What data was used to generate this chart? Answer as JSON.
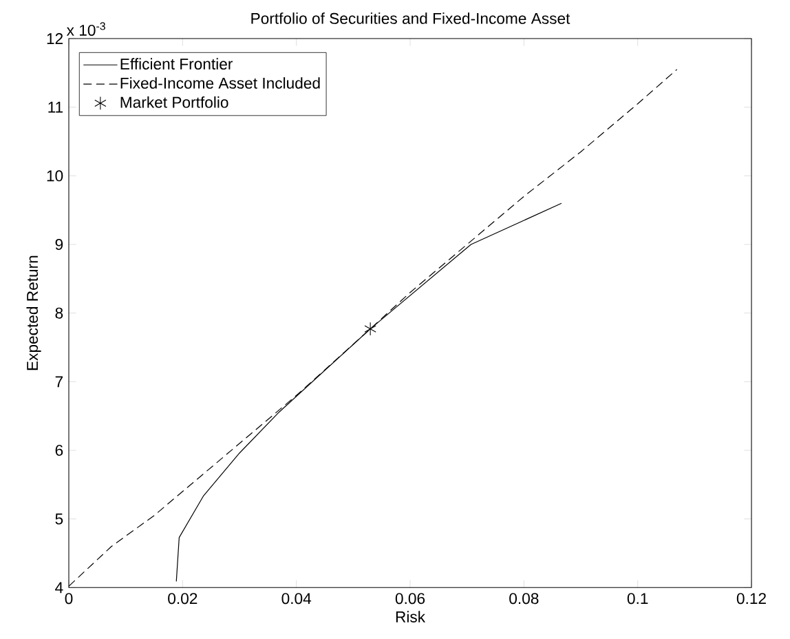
{
  "chart_data": {
    "type": "line",
    "title": "Portfolio of Securities and Fixed-Income Asset",
    "xlabel": "Risk",
    "ylabel": "Expected Return",
    "annotations": [
      "x 10$^{-3}$"
    ],
    "xlim": [
      0,
      0.12
    ],
    "xticks": [
      0,
      0.02,
      0.04,
      0.06,
      0.08,
      0.1,
      0.12
    ],
    "ylim": [
      4,
      12
    ],
    "yticks": [
      4,
      5,
      6,
      7,
      8,
      9,
      10,
      11,
      12
    ],
    "legend": "top left",
    "series": [
      {
        "name": "Efficient Frontier",
        "type": "line",
        "color": "#000000",
        "line_style": "solid",
        "marker": "none",
        "x": [
          0.0189,
          0.0194,
          0.0237,
          0.03,
          0.037,
          0.053,
          0.0707,
          0.0866
        ],
        "values": [
          4.09,
          4.73,
          5.34,
          5.96,
          6.56,
          7.77,
          9.0,
          9.6
        ]
      },
      {
        "name": "Fixed-Income Asset Included",
        "type": "line",
        "color": "#000000",
        "line_style": "dashed",
        "marker": "none",
        "x": [
          0,
          0.0075,
          0.015,
          0.02,
          0.03,
          0.04,
          0.053,
          0.06,
          0.07,
          0.08,
          0.09,
          0.1,
          0.1069
        ],
        "values": [
          4.02,
          4.6,
          5.05,
          5.4,
          6.1,
          6.8,
          7.77,
          8.3,
          9.0,
          9.7,
          10.35,
          11.05,
          11.55
        ]
      },
      {
        "name": "Market Portfolio",
        "type": "scatter",
        "color": "#000000",
        "marker": "cross",
        "x": [
          0.053
        ],
        "values": [
          7.77
        ]
      }
    ]
  }
}
